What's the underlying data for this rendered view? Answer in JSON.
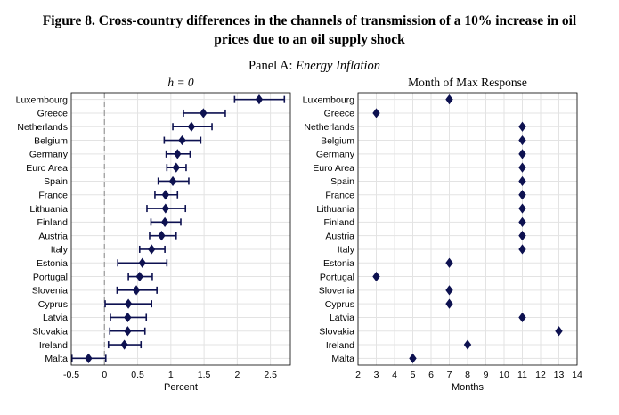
{
  "figure": {
    "title_line1": "Figure 8. Cross-country differences in the channels of transmission of a 10% increase in oil",
    "title_line2": "prices due to an oil supply shock",
    "panel_prefix": "Panel A: ",
    "panel_name": "Energy Inflation"
  },
  "colors": {
    "marker": "#0d1150",
    "grid": "#e3e3e3",
    "zero_line": "#a0a0a0"
  },
  "chart_data": [
    {
      "type": "scatter",
      "title": "h = 0",
      "xlabel": "Percent",
      "ylabel": "",
      "xlim": [
        -0.5,
        2.8
      ],
      "xticks": [
        -0.5,
        0,
        0.5,
        1,
        1.5,
        2,
        2.5
      ],
      "xtick_labels": [
        "-0.5",
        "0",
        "0.5",
        "1",
        "1.5",
        "2",
        "2.5"
      ],
      "grid": true,
      "zero_line": 0,
      "categories": [
        "Luxembourg",
        "Greece",
        "Netherlands",
        "Belgium",
        "Germany",
        "Euro Area",
        "Spain",
        "France",
        "Lithuania",
        "Finland",
        "Austria",
        "Italy",
        "Estonia",
        "Portugal",
        "Slovenia",
        "Cyprus",
        "Latvia",
        "Slovakia",
        "Ireland",
        "Malta"
      ],
      "values": [
        2.33,
        1.49,
        1.31,
        1.17,
        1.1,
        1.08,
        1.03,
        0.92,
        0.92,
        0.91,
        0.86,
        0.71,
        0.57,
        0.53,
        0.48,
        0.36,
        0.35,
        0.35,
        0.3,
        -0.24
      ],
      "lower": [
        1.96,
        1.19,
        1.03,
        0.9,
        0.93,
        0.94,
        0.81,
        0.76,
        0.64,
        0.7,
        0.68,
        0.53,
        0.2,
        0.36,
        0.19,
        0.01,
        0.09,
        0.08,
        0.06,
        -0.49
      ],
      "upper": [
        2.71,
        1.82,
        1.62,
        1.45,
        1.29,
        1.23,
        1.27,
        1.1,
        1.22,
        1.15,
        1.08,
        0.91,
        0.94,
        0.72,
        0.79,
        0.71,
        0.63,
        0.61,
        0.55,
        0.02
      ]
    },
    {
      "type": "scatter",
      "title": "Month of Max Response",
      "xlabel": "Months",
      "ylabel": "",
      "xlim": [
        2,
        14
      ],
      "xticks": [
        2,
        3,
        4,
        5,
        6,
        7,
        8,
        9,
        10,
        11,
        12,
        13,
        14
      ],
      "xtick_labels": [
        "2",
        "3",
        "4",
        "5",
        "6",
        "7",
        "8",
        "9",
        "10",
        "11",
        "12",
        "13",
        "14"
      ],
      "grid": true,
      "categories": [
        "Luxembourg",
        "Greece",
        "Netherlands",
        "Belgium",
        "Germany",
        "Euro Area",
        "Spain",
        "France",
        "Lithuania",
        "Finland",
        "Austria",
        "Italy",
        "Estonia",
        "Portugal",
        "Slovenia",
        "Cyprus",
        "Latvia",
        "Slovakia",
        "Ireland",
        "Malta"
      ],
      "values": [
        7,
        3,
        11,
        11,
        11,
        11,
        11,
        11,
        11,
        11,
        11,
        11,
        7,
        3,
        7,
        7,
        11,
        13,
        8,
        5
      ]
    }
  ]
}
